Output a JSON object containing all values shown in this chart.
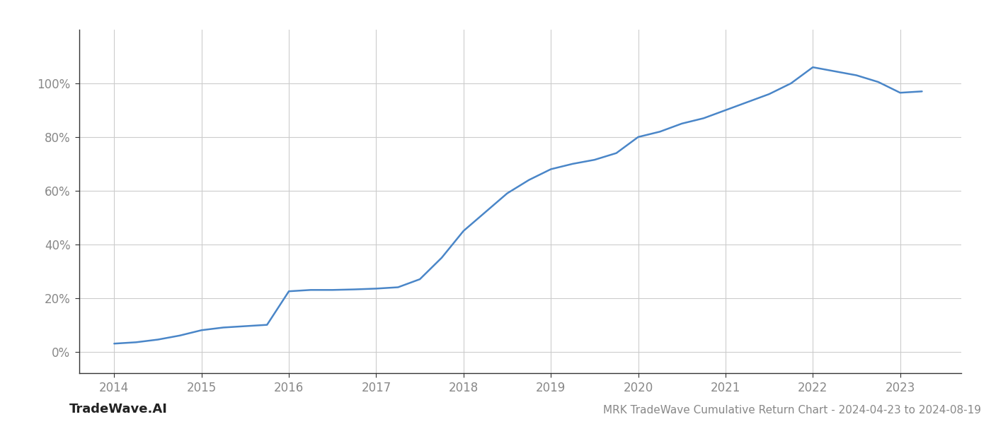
{
  "x_values": [
    2014.0,
    2014.25,
    2014.5,
    2014.75,
    2015.0,
    2015.25,
    2015.5,
    2015.75,
    2016.0,
    2016.25,
    2016.5,
    2016.75,
    2017.0,
    2017.25,
    2017.5,
    2017.75,
    2018.0,
    2018.25,
    2018.5,
    2018.75,
    2019.0,
    2019.25,
    2019.5,
    2019.75,
    2020.0,
    2020.25,
    2020.5,
    2020.75,
    2021.0,
    2021.25,
    2021.5,
    2021.75,
    2022.0,
    2022.25,
    2022.5,
    2022.75,
    2023.0,
    2023.25
  ],
  "y_values": [
    3.0,
    3.5,
    4.5,
    6.0,
    8.0,
    9.0,
    9.5,
    10.0,
    22.5,
    23.0,
    23.0,
    23.2,
    23.5,
    24.0,
    27.0,
    35.0,
    45.0,
    52.0,
    59.0,
    64.0,
    68.0,
    70.0,
    71.5,
    74.0,
    80.0,
    82.0,
    85.0,
    87.0,
    90.0,
    93.0,
    96.0,
    100.0,
    106.0,
    104.5,
    103.0,
    100.5,
    96.5,
    97.0
  ],
  "line_color": "#4a86c8",
  "line_width": 1.8,
  "title": "MRK TradeWave Cumulative Return Chart - 2024-04-23 to 2024-08-19",
  "xlabel": "",
  "ylabel": "",
  "xlim": [
    2013.6,
    2023.7
  ],
  "ylim": [
    -8,
    120
  ],
  "x_ticks": [
    2014,
    2015,
    2016,
    2017,
    2018,
    2019,
    2020,
    2021,
    2022,
    2023
  ],
  "y_ticks": [
    0,
    20,
    40,
    60,
    80,
    100
  ],
  "background_color": "#ffffff",
  "grid_color": "#cccccc",
  "watermark_text": "TradeWave.AI",
  "title_fontsize": 11,
  "tick_fontsize": 12,
  "watermark_fontsize": 13
}
